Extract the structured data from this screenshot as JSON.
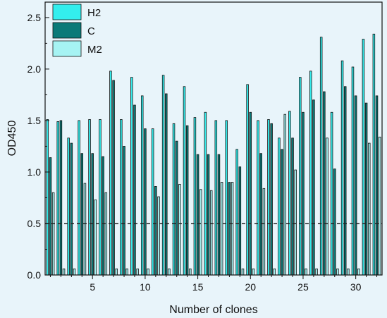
{
  "chart_data": {
    "type": "bar",
    "xlabel": "Number of clones",
    "ylabel": "OD450",
    "xlim": [
      0.5,
      32.5
    ],
    "ylim": [
      0,
      2.65
    ],
    "x_ticks": [
      5,
      10,
      15,
      20,
      25,
      30
    ],
    "y_ticks": [
      0.0,
      0.5,
      1.0,
      1.5,
      2.0,
      2.5
    ],
    "y_tick_labels": [
      "0.0",
      "0.5",
      "1.0",
      "1.5",
      "2.0",
      "2.5"
    ],
    "reference_line": {
      "y": 0.5,
      "style": "dashed",
      "color": "#222222"
    },
    "legend_position": "top-left",
    "categories": [
      1,
      2,
      3,
      4,
      5,
      6,
      7,
      8,
      9,
      10,
      11,
      12,
      13,
      14,
      15,
      16,
      17,
      18,
      19,
      20,
      21,
      22,
      23,
      24,
      25,
      26,
      27,
      28,
      29,
      30,
      31,
      32
    ],
    "series": [
      {
        "name": "H2",
        "color": "#33eeee",
        "values": [
          1.51,
          1.49,
          1.33,
          1.5,
          1.51,
          1.51,
          1.98,
          1.51,
          1.92,
          1.74,
          1.42,
          1.94,
          1.47,
          1.83,
          1.53,
          1.58,
          1.5,
          1.5,
          1.22,
          1.85,
          1.5,
          1.51,
          1.33,
          1.59,
          1.92,
          1.98,
          2.31,
          1.58,
          2.08,
          2.02,
          2.29,
          2.34
        ]
      },
      {
        "name": "C",
        "color": "#0b7a78",
        "values": [
          1.14,
          1.5,
          1.28,
          1.18,
          1.18,
          1.15,
          1.89,
          1.25,
          1.65,
          1.42,
          0.86,
          1.76,
          1.3,
          1.45,
          1.17,
          1.17,
          1.17,
          0.9,
          1.05,
          1.58,
          1.18,
          1.47,
          1.22,
          1.33,
          1.58,
          1.7,
          1.78,
          1.03,
          1.83,
          1.74,
          1.67,
          1.74
        ]
      },
      {
        "name": "M2",
        "color": "#a6f3f3",
        "values": [
          0.8,
          0.06,
          0.06,
          0.89,
          0.73,
          0.8,
          0.06,
          0.06,
          0.06,
          0.06,
          0.76,
          0.06,
          0.88,
          0.06,
          0.83,
          0.82,
          0.9,
          0.9,
          0.06,
          0.06,
          0.84,
          0.06,
          1.56,
          1.02,
          0.06,
          0.06,
          1.33,
          0.06,
          0.06,
          0.06,
          1.28,
          1.34
        ]
      }
    ]
  }
}
